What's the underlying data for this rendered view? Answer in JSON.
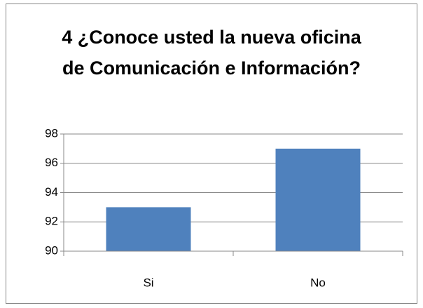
{
  "chart_data": {
    "type": "bar",
    "title": "4 ¿Conoce usted la nueva oficina de Comunicación e Información?",
    "categories": [
      "Si",
      "No"
    ],
    "values": [
      93,
      97
    ],
    "color": "#4f81bd",
    "ylim": [
      90,
      98
    ],
    "yticks": [
      90,
      92,
      94,
      96,
      98
    ],
    "grid": true
  }
}
